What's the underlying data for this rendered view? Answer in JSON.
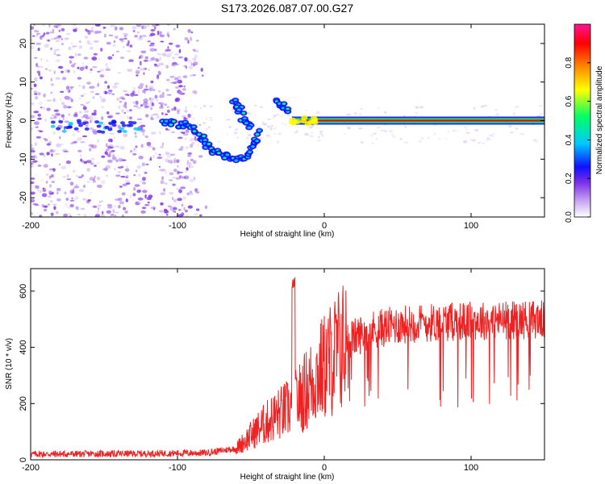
{
  "figure_title": "S173.2026.087.07.00.G27",
  "chart_data": [
    {
      "type": "heatmap",
      "name": "spectrogram",
      "xlabel": "Height of straight line (km)",
      "ylabel": "Frequency (Hz)",
      "xlim": [
        -200,
        150
      ],
      "ylim": [
        -25,
        25
      ],
      "xticks": [
        -200,
        -100,
        0,
        100
      ],
      "yticks": [
        -20,
        -10,
        0,
        10,
        20
      ],
      "colorbar": {
        "label": "Normalized spectral amplitude",
        "range": [
          0,
          1
        ],
        "ticks": [
          0.0,
          0.2,
          0.4,
          0.6,
          0.8
        ],
        "tick_labels": [
          "0.0",
          "0.2",
          "0.4",
          "0.6",
          "0.8"
        ],
        "colors": [
          "#ffffff",
          "#c9a8f0",
          "#7a2ee8",
          "#1010ff",
          "#00c8ff",
          "#00ff66",
          "#ffff00",
          "#ff8800",
          "#ff0000",
          "#ff1493"
        ]
      },
      "features": {
        "noise_region_km": [
          -200,
          -95
        ],
        "noise_freq_hz": [
          -25,
          25
        ],
        "noise_amplitude": 0.15,
        "descending_trace": [
          {
            "x": -110,
            "y": 0
          },
          {
            "x": -100,
            "y": -1
          },
          {
            "x": -92,
            "y": -1
          },
          {
            "x": -85,
            "y": -4
          },
          {
            "x": -80,
            "y": -6
          },
          {
            "x": -75,
            "y": -8
          },
          {
            "x": -68,
            "y": -9
          },
          {
            "x": -60,
            "y": -10
          },
          {
            "x": -52,
            "y": -9
          },
          {
            "x": -48,
            "y": -6
          },
          {
            "x": -45,
            "y": -3
          }
        ],
        "detached_trace": [
          {
            "x": -62,
            "y": 5
          },
          {
            "x": -58,
            "y": 3
          },
          {
            "x": -54,
            "y": 0
          },
          {
            "x": -50,
            "y": -2
          }
        ],
        "upper_trace": [
          {
            "x": -33,
            "y": 5
          },
          {
            "x": -28,
            "y": 4
          },
          {
            "x": -24,
            "y": 2
          }
        ],
        "carrier_start_km": -22,
        "carrier_freq_hz": 0,
        "carrier_amplitude": 0.85
      },
      "series_color": "#6a1fd8"
    },
    {
      "type": "line",
      "name": "snr",
      "xlabel": "Height of straight line (km)",
      "ylabel": "SNR (10 * v/v)",
      "xlim": [
        -200,
        150
      ],
      "ylim": [
        0,
        680
      ],
      "xticks": [
        -200,
        -100,
        0,
        100
      ],
      "yticks": [
        0,
        200,
        400,
        600
      ],
      "series": [
        {
          "name": "SNR",
          "color": "#ee2222",
          "envelope": {
            "x": [
              -200,
              -120,
              -80,
              -60,
              -45,
              -35,
              -25,
              -20,
              -15,
              -5,
              5,
              15,
              30,
              50,
              80,
              110,
              150
            ],
            "y": [
              20,
              22,
              25,
              40,
              110,
              150,
              180,
              200,
              230,
              300,
              360,
              420,
              460,
              480,
              490,
              495,
              500
            ]
          },
          "spike_at_km": -21,
          "spike_peak": 650
        }
      ]
    }
  ]
}
